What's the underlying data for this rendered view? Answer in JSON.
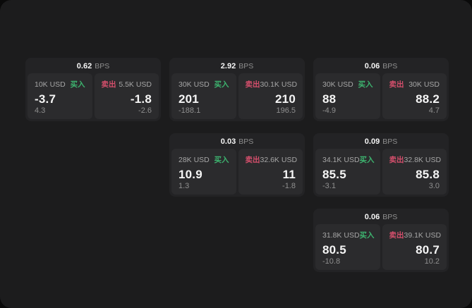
{
  "colors": {
    "background": "#0a0a0a",
    "surface": "#1c1c1d",
    "card": "#232325",
    "panel": "#2b2b2d",
    "buy": "#3db46f",
    "sell": "#d44f6c",
    "text_primary": "#f5f5f5",
    "text_secondary": "#a6a6a6",
    "text_muted": "#8f8f8f"
  },
  "cards": [
    {
      "bps": "0.62",
      "unit": "BPS",
      "buy": {
        "size": "10K USD",
        "side": "买入",
        "price": "-3.7",
        "sub": "4.3"
      },
      "sell": {
        "size": "5.5K USD",
        "side": "卖出",
        "price": "-1.8",
        "sub": "-2.6"
      }
    },
    {
      "bps": "2.92",
      "unit": "BPS",
      "buy": {
        "size": "30K USD",
        "side": "买入",
        "price": "201",
        "sub": "-188.1"
      },
      "sell": {
        "size": "30.1K USD",
        "side": "卖出",
        "price": "210",
        "sub": "196.5"
      }
    },
    {
      "bps": "0.06",
      "unit": "BPS",
      "buy": {
        "size": "30K USD",
        "side": "买入",
        "price": "88",
        "sub": "-4.9"
      },
      "sell": {
        "size": "30K USD",
        "side": "卖出",
        "price": "88.2",
        "sub": "4.7"
      }
    },
    {
      "bps": "0.03",
      "unit": "BPS",
      "buy": {
        "size": "28K USD",
        "side": "买入",
        "price": "10.9",
        "sub": "1.3"
      },
      "sell": {
        "size": "32.6K USD",
        "side": "卖出",
        "price": "11",
        "sub": "-1.8"
      }
    },
    {
      "bps": "0.09",
      "unit": "BPS",
      "buy": {
        "size": "34.1K USD",
        "side": "买入",
        "price": "85.5",
        "sub": "-3.1"
      },
      "sell": {
        "size": "32.8K USD",
        "side": "卖出",
        "price": "85.8",
        "sub": "3.0"
      }
    },
    {
      "bps": "0.06",
      "unit": "BPS",
      "buy": {
        "size": "31.8K USD",
        "side": "买入",
        "price": "80.5",
        "sub": "-10.8"
      },
      "sell": {
        "size": "39.1K USD",
        "side": "卖出",
        "price": "80.7",
        "sub": "10.2"
      }
    }
  ]
}
